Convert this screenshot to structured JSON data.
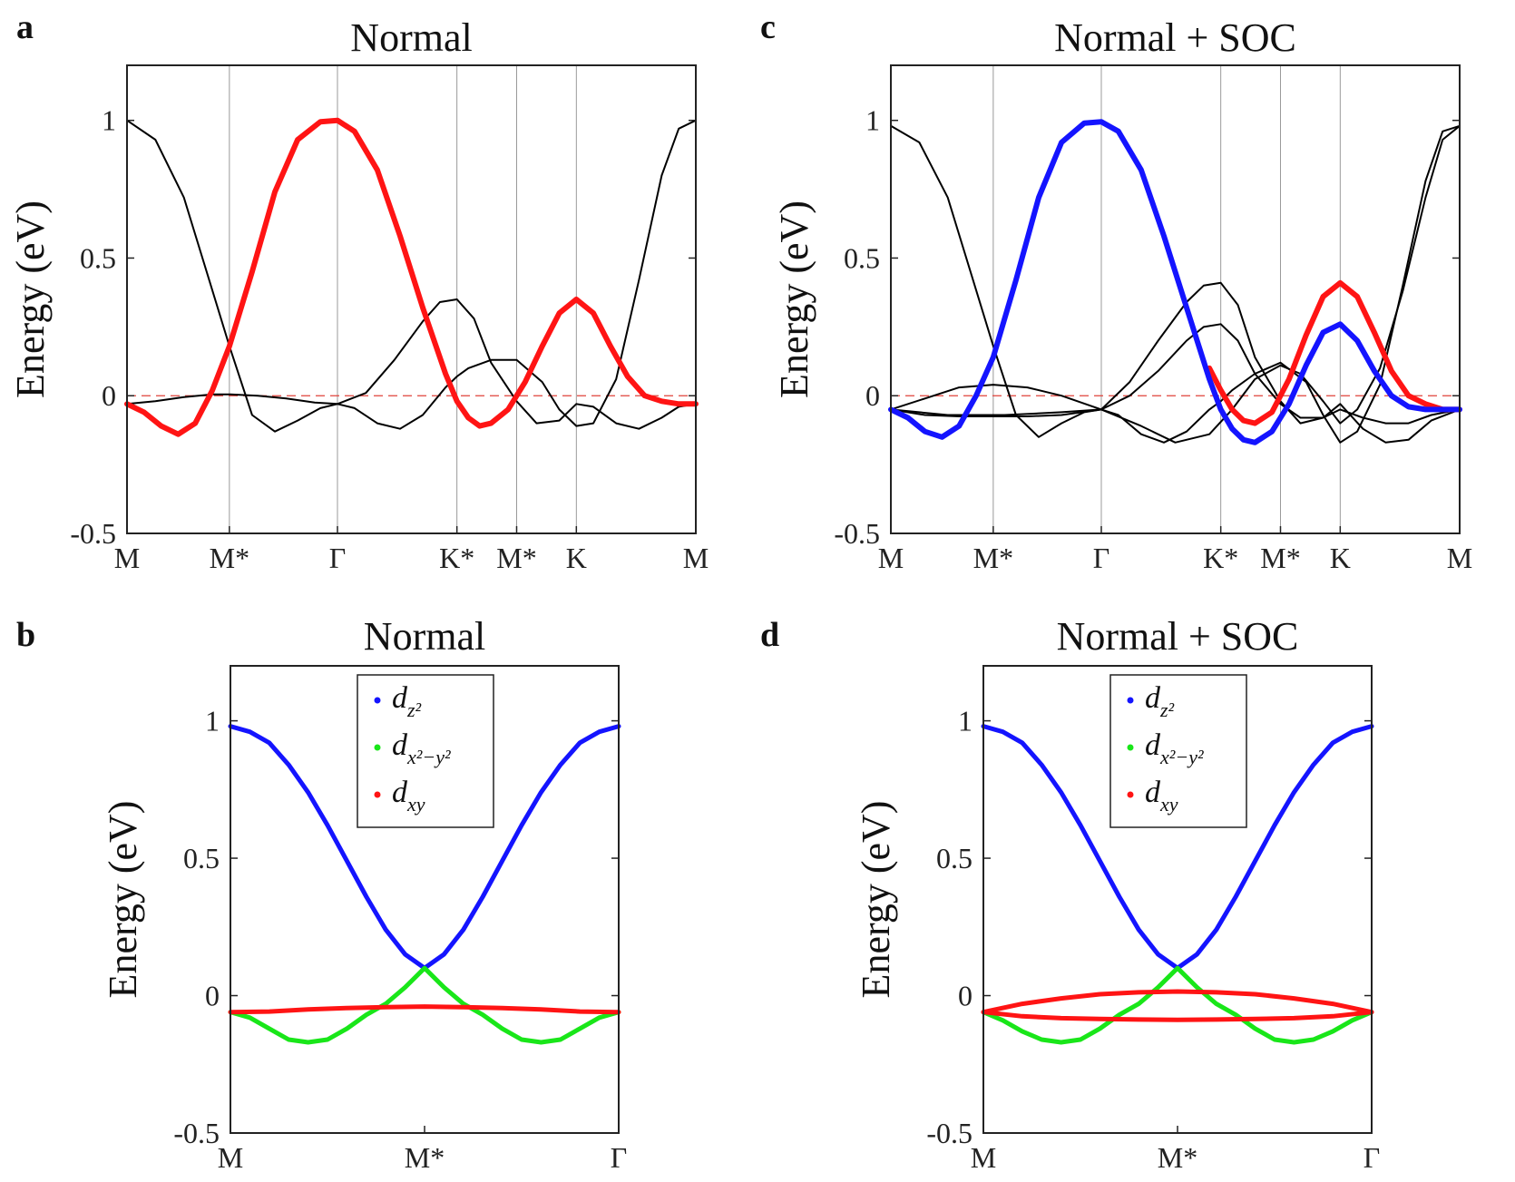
{
  "colors": {
    "black": "#000000",
    "red": "#ff1414",
    "blue": "#1414ff",
    "green": "#19e619",
    "grid": "#9a9a9a",
    "fermi": "#e0413a"
  },
  "chart_data": [
    {
      "id": "a",
      "panel_label": "a",
      "type": "line",
      "title": "Normal",
      "ylabel": "Energy (eV)",
      "ylim": [
        -0.5,
        1.2
      ],
      "yticks": [
        -0.5,
        0,
        0.5,
        1
      ],
      "ytick_labels": [
        "-0.5",
        "0",
        "0.5",
        "1"
      ],
      "xticks": [
        0,
        0.18,
        0.37,
        0.58,
        0.685,
        0.79,
        1
      ],
      "xtick_labels": [
        "M",
        "M*",
        "Γ",
        "K*",
        "M*",
        "K",
        "M"
      ],
      "vertical_lines_at": [
        0.18,
        0.37,
        0.58,
        0.685,
        0.79
      ],
      "fermi_level": 0,
      "series": [
        {
          "color": "black",
          "width": 2,
          "x": [
            0,
            0.05,
            0.1,
            0.14,
            0.18,
            0.22,
            0.26,
            0.3,
            0.34,
            0.37,
            0.4,
            0.44,
            0.48,
            0.52,
            0.56,
            0.58,
            0.6,
            0.64,
            0.685,
            0.73,
            0.76,
            0.79,
            0.82,
            0.86,
            0.9,
            0.94,
            0.97,
            1
          ],
          "y": [
            1.0,
            0.93,
            0.72,
            0.45,
            0.18,
            -0.07,
            -0.13,
            -0.09,
            -0.045,
            -0.03,
            -0.045,
            -0.1,
            -0.12,
            -0.07,
            0.03,
            0.07,
            0.1,
            0.13,
            0.13,
            0.05,
            -0.05,
            -0.11,
            -0.1,
            0.06,
            0.42,
            0.8,
            0.97,
            1.0
          ]
        },
        {
          "color": "black",
          "width": 2,
          "x": [
            0,
            0.05,
            0.1,
            0.15,
            0.18,
            0.23,
            0.28,
            0.33,
            0.37,
            0.42,
            0.47,
            0.52,
            0.55,
            0.58,
            0.61,
            0.64,
            0.685,
            0.72,
            0.76,
            0.79,
            0.82,
            0.86,
            0.9,
            0.94,
            0.97,
            1
          ],
          "y": [
            -0.03,
            -0.02,
            -0.005,
            0.005,
            0.005,
            0.0,
            -0.01,
            -0.025,
            -0.03,
            0.01,
            0.13,
            0.27,
            0.34,
            0.35,
            0.28,
            0.12,
            -0.02,
            -0.1,
            -0.09,
            -0.03,
            -0.04,
            -0.1,
            -0.12,
            -0.08,
            -0.04,
            -0.03
          ]
        },
        {
          "color": "red",
          "width": 6,
          "x": [
            0,
            0.03,
            0.06,
            0.09,
            0.12,
            0.15,
            0.18,
            0.22,
            0.26,
            0.3,
            0.34,
            0.37,
            0.4,
            0.44,
            0.48,
            0.52,
            0.56,
            0.58,
            0.6,
            0.62,
            0.64,
            0.67,
            0.7,
            0.73,
            0.76,
            0.79,
            0.82,
            0.85,
            0.88,
            0.91,
            0.94,
            0.97,
            1
          ],
          "y": [
            -0.03,
            -0.06,
            -0.11,
            -0.14,
            -0.1,
            0.02,
            0.18,
            0.45,
            0.74,
            0.93,
            0.995,
            1.0,
            0.96,
            0.82,
            0.58,
            0.32,
            0.08,
            -0.02,
            -0.08,
            -0.11,
            -0.1,
            -0.05,
            0.05,
            0.18,
            0.3,
            0.35,
            0.3,
            0.18,
            0.07,
            0.0,
            -0.02,
            -0.03,
            -0.03
          ]
        }
      ]
    },
    {
      "id": "c",
      "panel_label": "c",
      "type": "line",
      "title": "Normal + SOC",
      "ylabel": "Energy (eV)",
      "ylim": [
        -0.5,
        1.2
      ],
      "yticks": [
        -0.5,
        0,
        0.5,
        1
      ],
      "ytick_labels": [
        "-0.5",
        "0",
        "0.5",
        "1"
      ],
      "xticks": [
        0,
        0.18,
        0.37,
        0.58,
        0.685,
        0.79,
        1
      ],
      "xtick_labels": [
        "M",
        "M*",
        "Γ",
        "K*",
        "M*",
        "K",
        "M"
      ],
      "vertical_lines_at": [
        0.18,
        0.37,
        0.58,
        0.685,
        0.79
      ],
      "fermi_level": 0,
      "series": [
        {
          "color": "black",
          "width": 2,
          "x": [
            0,
            0.05,
            0.1,
            0.14,
            0.18,
            0.22,
            0.26,
            0.3,
            0.34,
            0.37,
            0.4,
            0.44,
            0.48,
            0.52,
            0.56,
            0.58,
            0.6,
            0.64,
            0.685,
            0.73,
            0.76,
            0.79,
            0.82,
            0.86,
            0.9,
            0.94,
            0.97,
            1
          ],
          "y": [
            0.98,
            0.92,
            0.72,
            0.45,
            0.18,
            -0.07,
            -0.15,
            -0.1,
            -0.06,
            -0.05,
            -0.07,
            -0.14,
            -0.17,
            -0.13,
            -0.05,
            -0.02,
            0.02,
            0.08,
            0.12,
            0.05,
            -0.07,
            -0.17,
            -0.13,
            0.04,
            0.4,
            0.78,
            0.96,
            0.98
          ]
        },
        {
          "color": "black",
          "width": 2,
          "x": [
            0,
            0.06,
            0.12,
            0.18,
            0.24,
            0.3,
            0.37,
            0.42,
            0.47,
            0.52,
            0.55,
            0.58,
            0.61,
            0.64,
            0.685,
            0.72,
            0.76,
            0.79,
            0.83,
            0.87,
            0.91,
            0.95,
            1
          ],
          "y": [
            -0.05,
            -0.01,
            0.03,
            0.04,
            0.03,
            0.0,
            -0.05,
            0.05,
            0.2,
            0.34,
            0.4,
            0.41,
            0.33,
            0.14,
            -0.02,
            -0.1,
            -0.08,
            -0.05,
            -0.08,
            -0.1,
            -0.1,
            -0.07,
            -0.05
          ]
        },
        {
          "color": "black",
          "width": 2,
          "x": [
            0,
            0.06,
            0.12,
            0.18,
            0.24,
            0.3,
            0.37,
            0.42,
            0.47,
            0.52,
            0.55,
            0.58,
            0.61,
            0.64,
            0.685,
            0.72,
            0.76,
            0.79,
            0.83,
            0.87,
            0.91,
            0.95,
            1
          ],
          "y": [
            -0.05,
            -0.07,
            -0.075,
            -0.075,
            -0.075,
            -0.07,
            -0.05,
            0.0,
            0.09,
            0.2,
            0.25,
            0.26,
            0.2,
            0.08,
            -0.03,
            -0.08,
            -0.08,
            -0.03,
            -0.12,
            -0.17,
            -0.16,
            -0.09,
            -0.05
          ]
        },
        {
          "color": "black",
          "width": 2,
          "x": [
            0,
            0.1,
            0.2,
            0.3,
            0.37,
            0.44,
            0.5,
            0.56,
            0.6,
            0.64,
            0.685,
            0.72,
            0.76,
            0.79,
            0.82,
            0.86,
            0.9,
            0.94,
            0.97,
            1
          ],
          "y": [
            -0.05,
            -0.07,
            -0.07,
            -0.06,
            -0.05,
            -0.11,
            -0.17,
            -0.14,
            -0.05,
            0.06,
            0.11,
            0.08,
            -0.02,
            -0.1,
            -0.05,
            0.1,
            0.38,
            0.72,
            0.93,
            0.98
          ]
        },
        {
          "color": "red",
          "width": 6,
          "x": [
            0.56,
            0.58,
            0.6,
            0.62,
            0.64,
            0.67,
            0.7,
            0.73,
            0.76,
            0.79,
            0.82,
            0.85,
            0.88,
            0.91,
            0.94,
            0.97,
            1
          ],
          "y": [
            0.1,
            0.02,
            -0.05,
            -0.09,
            -0.1,
            -0.06,
            0.06,
            0.22,
            0.36,
            0.41,
            0.36,
            0.23,
            0.09,
            0.0,
            -0.03,
            -0.05,
            -0.05
          ]
        },
        {
          "color": "blue",
          "width": 6,
          "x": [
            0,
            0.03,
            0.06,
            0.09,
            0.12,
            0.15,
            0.18,
            0.22,
            0.26,
            0.3,
            0.34,
            0.37,
            0.4,
            0.44,
            0.48,
            0.52,
            0.56,
            0.58,
            0.6,
            0.62,
            0.64,
            0.67,
            0.7,
            0.73,
            0.76,
            0.79,
            0.82,
            0.85,
            0.88,
            0.91,
            0.94,
            0.97,
            1
          ],
          "y": [
            -0.05,
            -0.08,
            -0.13,
            -0.15,
            -0.11,
            0.0,
            0.14,
            0.42,
            0.72,
            0.92,
            0.99,
            0.995,
            0.96,
            0.82,
            0.58,
            0.32,
            0.06,
            -0.05,
            -0.12,
            -0.16,
            -0.17,
            -0.13,
            -0.03,
            0.11,
            0.23,
            0.26,
            0.2,
            0.09,
            0.0,
            -0.04,
            -0.05,
            -0.05,
            -0.05
          ]
        }
      ]
    },
    {
      "id": "b",
      "panel_label": "b",
      "type": "line",
      "title": "Normal",
      "ylabel": "Energy (eV)",
      "ylim": [
        -0.5,
        1.2
      ],
      "yticks": [
        -0.5,
        0,
        0.5,
        1
      ],
      "ytick_labels": [
        "-0.5",
        "0",
        "0.5",
        "1"
      ],
      "xticks": [
        0,
        0.5,
        1
      ],
      "xtick_labels": [
        "M",
        "M*",
        "Γ"
      ],
      "vertical_lines_at": [],
      "legend": {
        "position": "top-center",
        "entries": [
          {
            "color": "blue",
            "base": "d",
            "sub": "z²"
          },
          {
            "color": "green",
            "base": "d",
            "sub": "x²−y²"
          },
          {
            "color": "red",
            "base": "d",
            "sub": "xy"
          }
        ]
      },
      "series": [
        {
          "color": "blue",
          "width": 5,
          "x": [
            0,
            0.05,
            0.1,
            0.15,
            0.2,
            0.25,
            0.3,
            0.35,
            0.4,
            0.45,
            0.5
          ],
          "y": [
            0.98,
            0.96,
            0.92,
            0.84,
            0.74,
            0.62,
            0.49,
            0.36,
            0.24,
            0.15,
            0.1
          ]
        },
        {
          "color": "green",
          "width": 5,
          "x": [
            0,
            0.05,
            0.1,
            0.15,
            0.2,
            0.25,
            0.3,
            0.35,
            0.4,
            0.45,
            0.5
          ],
          "y": [
            -0.06,
            -0.08,
            -0.12,
            -0.16,
            -0.17,
            -0.16,
            -0.12,
            -0.07,
            -0.03,
            0.03,
            0.1
          ]
        },
        {
          "color": "blue",
          "width": 5,
          "x": [
            0.5,
            0.55,
            0.6,
            0.65,
            0.7,
            0.75,
            0.8,
            0.85,
            0.9,
            0.95,
            1
          ],
          "y": [
            0.1,
            0.15,
            0.24,
            0.36,
            0.49,
            0.62,
            0.74,
            0.84,
            0.92,
            0.96,
            0.98
          ]
        },
        {
          "color": "green",
          "width": 5,
          "x": [
            0.5,
            0.55,
            0.6,
            0.65,
            0.7,
            0.75,
            0.8,
            0.85,
            0.9,
            0.95,
            1
          ],
          "y": [
            0.1,
            0.03,
            -0.03,
            -0.07,
            -0.12,
            -0.16,
            -0.17,
            -0.16,
            -0.12,
            -0.08,
            -0.06
          ]
        },
        {
          "color": "red",
          "width": 5,
          "x": [
            0,
            0.1,
            0.2,
            0.3,
            0.4,
            0.5,
            0.6,
            0.7,
            0.8,
            0.9,
            1
          ],
          "y": [
            -0.06,
            -0.058,
            -0.05,
            -0.045,
            -0.042,
            -0.04,
            -0.042,
            -0.045,
            -0.05,
            -0.058,
            -0.06
          ]
        }
      ]
    },
    {
      "id": "d",
      "panel_label": "d",
      "type": "line",
      "title": "Normal + SOC",
      "ylabel": "Energy (eV)",
      "ylim": [
        -0.5,
        1.2
      ],
      "yticks": [
        -0.5,
        0,
        0.5,
        1
      ],
      "ytick_labels": [
        "-0.5",
        "0",
        "0.5",
        "1"
      ],
      "xticks": [
        0,
        0.5,
        1
      ],
      "xtick_labels": [
        "M",
        "M*",
        "Γ"
      ],
      "vertical_lines_at": [],
      "legend": {
        "position": "top-center",
        "entries": [
          {
            "color": "blue",
            "base": "d",
            "sub": "z²"
          },
          {
            "color": "green",
            "base": "d",
            "sub": "x²−y²"
          },
          {
            "color": "red",
            "base": "d",
            "sub": "xy"
          }
        ]
      },
      "series": [
        {
          "color": "blue",
          "width": 5,
          "x": [
            0,
            0.05,
            0.1,
            0.15,
            0.2,
            0.25,
            0.3,
            0.35,
            0.4,
            0.45,
            0.5
          ],
          "y": [
            0.98,
            0.96,
            0.92,
            0.84,
            0.74,
            0.62,
            0.49,
            0.36,
            0.24,
            0.15,
            0.1
          ]
        },
        {
          "color": "green",
          "width": 5,
          "x": [
            0,
            0.05,
            0.1,
            0.15,
            0.2,
            0.25,
            0.3,
            0.35,
            0.4,
            0.45,
            0.5
          ],
          "y": [
            -0.06,
            -0.09,
            -0.13,
            -0.16,
            -0.17,
            -0.16,
            -0.12,
            -0.07,
            -0.03,
            0.03,
            0.1
          ]
        },
        {
          "color": "blue",
          "width": 5,
          "x": [
            0.5,
            0.55,
            0.6,
            0.65,
            0.7,
            0.75,
            0.8,
            0.85,
            0.9,
            0.95,
            1
          ],
          "y": [
            0.1,
            0.15,
            0.24,
            0.36,
            0.49,
            0.62,
            0.74,
            0.84,
            0.92,
            0.96,
            0.98
          ]
        },
        {
          "color": "green",
          "width": 5,
          "x": [
            0.5,
            0.55,
            0.6,
            0.65,
            0.7,
            0.75,
            0.8,
            0.85,
            0.9,
            0.95,
            1
          ],
          "y": [
            0.1,
            0.03,
            -0.03,
            -0.07,
            -0.12,
            -0.16,
            -0.17,
            -0.16,
            -0.13,
            -0.09,
            -0.06
          ]
        },
        {
          "color": "red",
          "width": 5,
          "x": [
            0,
            0.1,
            0.2,
            0.3,
            0.4,
            0.5,
            0.6,
            0.7,
            0.8,
            0.9,
            1
          ],
          "y": [
            -0.06,
            -0.03,
            -0.01,
            0.005,
            0.012,
            0.015,
            0.012,
            0.005,
            -0.01,
            -0.03,
            -0.06
          ]
        },
        {
          "color": "red",
          "width": 5,
          "x": [
            0,
            0.1,
            0.2,
            0.3,
            0.4,
            0.5,
            0.6,
            0.7,
            0.8,
            0.9,
            1
          ],
          "y": [
            -0.06,
            -0.075,
            -0.082,
            -0.085,
            -0.087,
            -0.088,
            -0.087,
            -0.085,
            -0.082,
            -0.075,
            -0.06
          ]
        }
      ]
    }
  ]
}
